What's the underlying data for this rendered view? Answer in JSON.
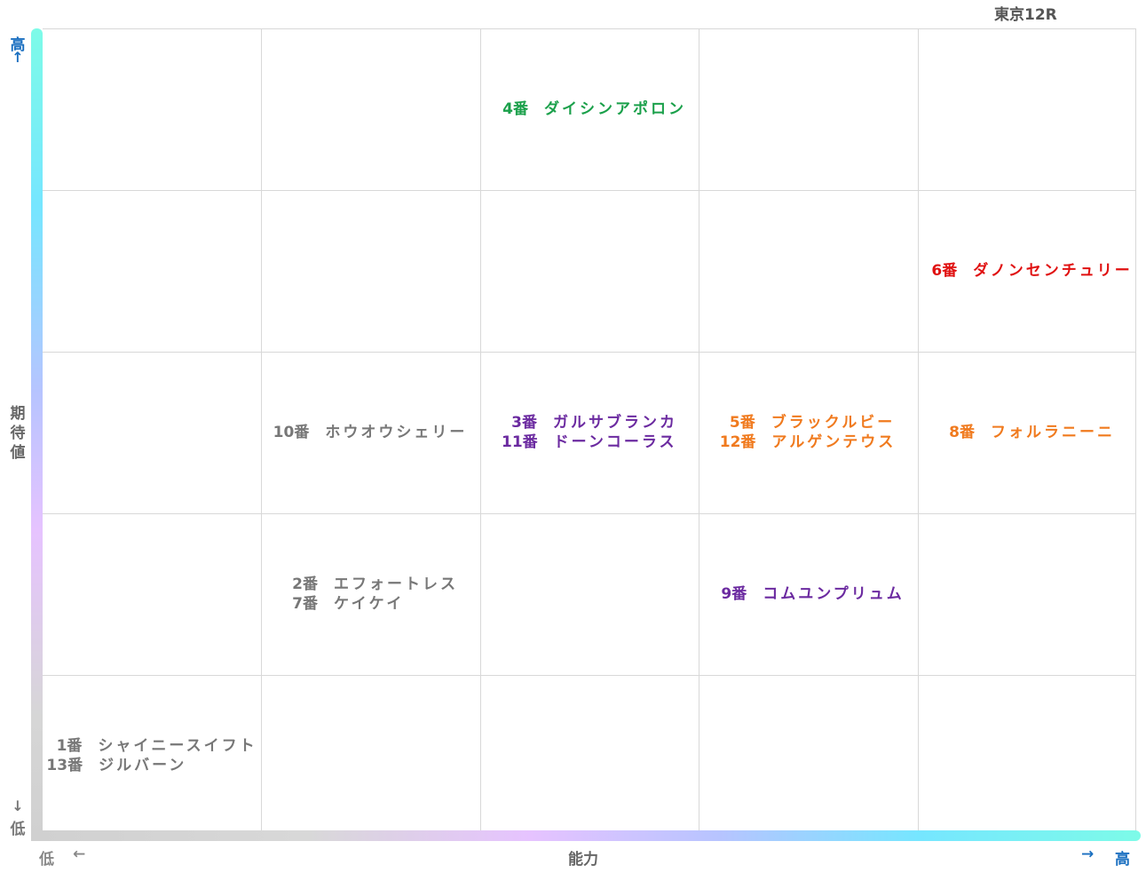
{
  "title": "東京12R",
  "axes": {
    "y_label": "期待値",
    "y_high": "高",
    "y_low": "低",
    "y_arrow_up": "↑",
    "y_arrow_down": "↓",
    "x_label": "能力",
    "x_high": "高",
    "x_low": "低",
    "x_arrow_left": "←",
    "x_arrow_right": "→"
  },
  "colors": {
    "green": "#1aa04a",
    "red": "#e01010",
    "purple": "#6b2aa0",
    "orange": "#f07a1e",
    "gray": "#777777"
  },
  "chart_data": {
    "type": "table",
    "title": "東京12R",
    "xlabel": "能力",
    "ylabel": "期待値",
    "columns": 5,
    "rows": 5,
    "grid": true,
    "entries": [
      {
        "col": 3,
        "row": 5,
        "num": "4番",
        "name": "ダイシンアポロン",
        "color": "#1aa04a"
      },
      {
        "col": 5,
        "row": 4,
        "num": "6番",
        "name": "ダノンセンチュリー",
        "color": "#e01010"
      },
      {
        "col": 2,
        "row": 3,
        "num": "10番",
        "name": "ホウオウシェリー",
        "color": "#777777"
      },
      {
        "col": 3,
        "row": 3,
        "num": "3番",
        "name": "ガルサブランカ",
        "color": "#6b2aa0"
      },
      {
        "col": 3,
        "row": 3,
        "num": "11番",
        "name": "ドーンコーラス",
        "color": "#6b2aa0"
      },
      {
        "col": 4,
        "row": 3,
        "num": "5番",
        "name": "ブラックルビー",
        "color": "#f07a1e"
      },
      {
        "col": 4,
        "row": 3,
        "num": "12番",
        "name": "アルゲンテウス",
        "color": "#f07a1e"
      },
      {
        "col": 5,
        "row": 3,
        "num": "8番",
        "name": "フォルラニーニ",
        "color": "#f07a1e"
      },
      {
        "col": 2,
        "row": 2,
        "num": "2番",
        "name": "エフォートレス",
        "color": "#777777"
      },
      {
        "col": 2,
        "row": 2,
        "num": "7番",
        "name": "ケイケイ",
        "color": "#777777"
      },
      {
        "col": 4,
        "row": 2,
        "num": "9番",
        "name": "コムユンプリュム",
        "color": "#6b2aa0"
      },
      {
        "col": 1,
        "row": 1,
        "num": "1番",
        "name": "シャイニースイフト",
        "color": "#777777"
      },
      {
        "col": 1,
        "row": 1,
        "num": "13番",
        "name": "ジルバーン",
        "color": "#777777"
      }
    ]
  }
}
